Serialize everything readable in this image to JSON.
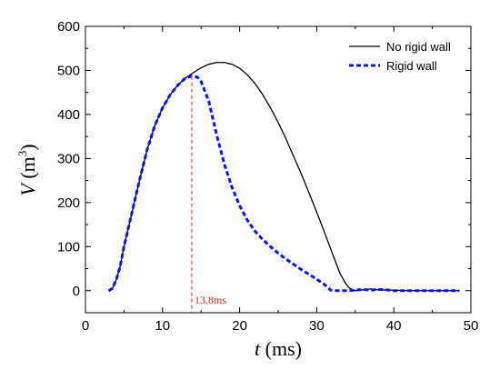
{
  "chart_data": {
    "type": "line",
    "xlabel": {
      "symbol": "t",
      "unit": " (ms)"
    },
    "ylabel": {
      "symbol": "V",
      "unit_open": " (m",
      "unit_sup": "3",
      "unit_close": ")"
    },
    "xlim": [
      0,
      50
    ],
    "ylim": [
      -50,
      600
    ],
    "xticks": [
      0,
      10,
      20,
      30,
      40,
      50
    ],
    "yticks": [
      0,
      100,
      200,
      300,
      400,
      500,
      600
    ],
    "grid": false,
    "legend_position": "top-right",
    "series": [
      {
        "name": "No rigid wall",
        "color": "#000000",
        "style": "solid",
        "x": [
          3,
          3.5,
          4,
          4.5,
          5,
          6,
          7,
          8,
          9,
          10,
          11,
          12,
          13,
          14,
          15,
          16,
          17,
          18,
          19,
          20,
          21,
          22,
          23,
          24,
          25,
          26,
          27,
          28,
          29,
          30,
          31,
          32,
          33,
          33.8,
          34.3,
          35,
          36,
          37,
          38,
          40,
          42,
          44,
          46,
          48.5
        ],
        "y": [
          0,
          5,
          25,
          55,
          100,
          175,
          250,
          320,
          375,
          415,
          445,
          467,
          483,
          495,
          506,
          514,
          518,
          518,
          514,
          505,
          490,
          470,
          445,
          415,
          382,
          345,
          305,
          265,
          222,
          178,
          133,
          86,
          40,
          15,
          5,
          0,
          2,
          4,
          2,
          1,
          0,
          0,
          0,
          0
        ]
      },
      {
        "name": "Rigid wall",
        "color": "#0a14f0",
        "style": "dashed",
        "x": [
          3,
          3.5,
          4,
          4.5,
          5,
          6,
          7,
          8,
          9,
          10,
          11,
          12,
          13,
          13.8,
          14.5,
          15,
          16,
          17,
          18,
          19,
          20,
          21,
          22,
          23,
          24,
          25,
          26,
          27,
          28,
          29,
          30,
          31,
          31.5,
          31.8,
          32.5,
          33,
          34,
          35,
          36,
          37,
          38,
          39,
          40,
          42,
          44,
          46,
          48.5
        ],
        "y": [
          0,
          5,
          25,
          55,
          100,
          175,
          250,
          320,
          375,
          415,
          445,
          467,
          483,
          487,
          485,
          475,
          430,
          355,
          288,
          235,
          193,
          160,
          135,
          116,
          100,
          85,
          72,
          60,
          48,
          37,
          26,
          14,
          7,
          1,
          0,
          0,
          0,
          1,
          3,
          1,
          3,
          2,
          0,
          0,
          0,
          0,
          0
        ]
      }
    ],
    "annotation": {
      "text": "13.8ms",
      "x": 13.8,
      "color": "#e8201c"
    }
  }
}
